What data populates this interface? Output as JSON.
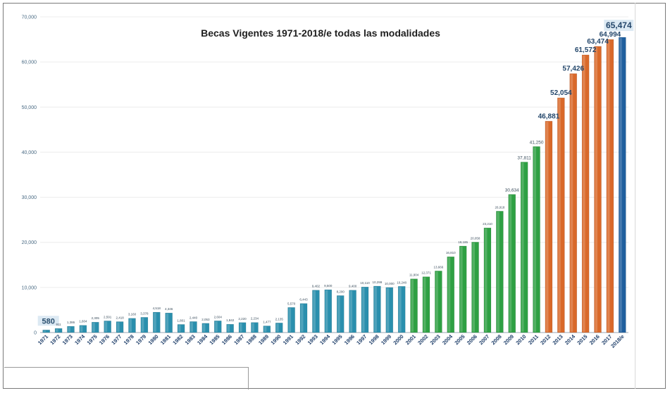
{
  "chart_data": {
    "type": "bar",
    "title": "Becas Vigentes 1971-2018/e todas las modalidades",
    "ylim": [
      0,
      70000
    ],
    "yticks": [
      "0",
      "10,000",
      "20,000",
      "30,000",
      "40,000",
      "50,000",
      "60,000",
      "70,000"
    ],
    "grid": true,
    "legend": "none",
    "categories": [
      "1971",
      "1972",
      "1973",
      "1974",
      "1975",
      "1976",
      "1977",
      "1978",
      "1979",
      "1980",
      "1981",
      "1982",
      "1983",
      "1984",
      "1985",
      "1986",
      "1987",
      "1988",
      "1989",
      "1990",
      "1991",
      "1992",
      "1993",
      "1994",
      "1995",
      "1996",
      "1997",
      "1998",
      "1999",
      "2000",
      "2001",
      "2002",
      "2003",
      "2004",
      "2005",
      "2006",
      "2007",
      "2008",
      "2009",
      "2010",
      "2011",
      "2012",
      "2013",
      "2014",
      "2015",
      "2016",
      "2017",
      "2018/e"
    ],
    "values": [
      580,
      911,
      1386,
      1604,
      2305,
      2591,
      2418,
      3160,
      3378,
      4518,
      4346,
      1801,
      2440,
      2053,
      2604,
      1842,
      2220,
      2234,
      1477,
      2135,
      5570,
      6443,
      9402,
      9500,
      8200,
      9400,
      10110,
      10299,
      10000,
      10248,
      11904,
      12371,
      13666,
      16810,
      19185,
      20058,
      23210,
      26918,
      30634,
      37811,
      41250,
      46881,
      52054,
      57426,
      61572,
      63474,
      64994,
      65474
    ],
    "value_labels": [
      "580",
      "911",
      "1,386",
      "1,604",
      "2,305",
      "2,591",
      "2,418",
      "3,160",
      "3,378",
      "4,518",
      "4,346",
      "1,801",
      "2,440",
      "2,053",
      "2,604",
      "1,842",
      "2,220",
      "2,234",
      "1,477",
      "2,135",
      "5,570",
      "6,443",
      "9,402",
      "9,500",
      "8,200",
      "9,400",
      "10,110",
      "10,299",
      "10,000",
      "10,248",
      "11,904",
      "12,371",
      "13,666",
      "16,810",
      "19,185",
      "20,058",
      "23,210",
      "26,918",
      "30,634",
      "37,811",
      "41,250",
      "46,881",
      "52,054",
      "57,426",
      "61,572",
      "63,474",
      "64,994",
      "65,474"
    ],
    "bar_colors": {
      "teal": "#2a8fad",
      "green": "#2ea043",
      "orange": "#d9692a",
      "blue": "#1f5f9e"
    },
    "color_groups": [
      {
        "color": "teal",
        "from": "1971",
        "to": "2000"
      },
      {
        "color": "green",
        "from": "2001",
        "to": "2011"
      },
      {
        "color": "orange",
        "from": "2012",
        "to": "2017"
      },
      {
        "color": "blue",
        "from": "2018/e",
        "to": "2018/e"
      }
    ]
  }
}
